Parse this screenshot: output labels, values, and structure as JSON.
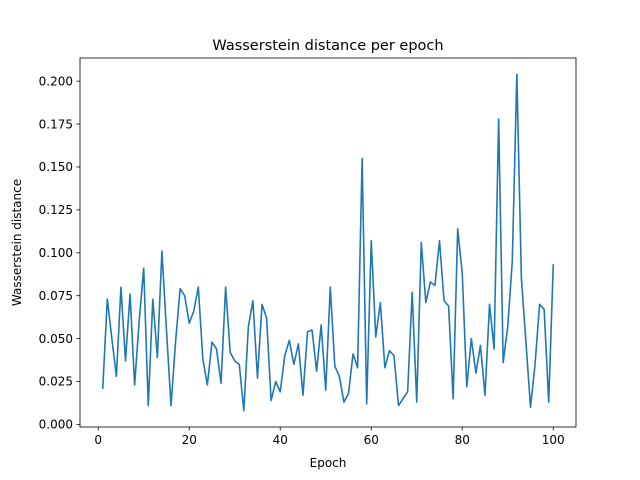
{
  "chart_data": {
    "type": "line",
    "title": "Wasserstein distance per epoch",
    "xlabel": "Epoch",
    "ylabel": "Wasserstein distance",
    "xlim": [
      -4,
      105
    ],
    "ylim": [
      -0.0015,
      0.2135
    ],
    "xticks": [
      0,
      20,
      40,
      60,
      80,
      100
    ],
    "yticks": [
      0.0,
      0.025,
      0.05,
      0.075,
      0.1,
      0.125,
      0.15,
      0.175,
      0.2
    ],
    "ytick_labels": [
      "0.000",
      "0.025",
      "0.050",
      "0.075",
      "0.100",
      "0.125",
      "0.150",
      "0.175",
      "0.200"
    ],
    "grid": false,
    "series": [
      {
        "color": "#1f77b4",
        "x": [
          1,
          2,
          3,
          4,
          5,
          6,
          7,
          8,
          9,
          10,
          11,
          12,
          13,
          14,
          15,
          16,
          17,
          18,
          19,
          20,
          21,
          22,
          23,
          24,
          25,
          26,
          27,
          28,
          29,
          30,
          31,
          32,
          33,
          34,
          35,
          36,
          37,
          38,
          39,
          40,
          41,
          42,
          43,
          44,
          45,
          46,
          47,
          48,
          49,
          50,
          51,
          52,
          53,
          54,
          55,
          56,
          57,
          58,
          59,
          60,
          61,
          62,
          63,
          64,
          65,
          66,
          67,
          68,
          69,
          70,
          71,
          72,
          73,
          74,
          75,
          76,
          77,
          78,
          79,
          80,
          81,
          82,
          83,
          84,
          85,
          86,
          87,
          88,
          89,
          90,
          91,
          92,
          93,
          94,
          95,
          96,
          97,
          98,
          99,
          100
        ],
        "values": [
          0.021,
          0.073,
          0.05,
          0.028,
          0.08,
          0.037,
          0.076,
          0.023,
          0.06,
          0.091,
          0.011,
          0.073,
          0.039,
          0.101,
          0.055,
          0.011,
          0.048,
          0.079,
          0.075,
          0.059,
          0.066,
          0.08,
          0.038,
          0.023,
          0.048,
          0.044,
          0.024,
          0.08,
          0.042,
          0.037,
          0.035,
          0.008,
          0.057,
          0.072,
          0.027,
          0.07,
          0.062,
          0.014,
          0.025,
          0.019,
          0.04,
          0.049,
          0.035,
          0.047,
          0.017,
          0.054,
          0.055,
          0.031,
          0.058,
          0.02,
          0.08,
          0.034,
          0.028,
          0.013,
          0.018,
          0.041,
          0.033,
          0.155,
          0.012,
          0.107,
          0.051,
          0.071,
          0.033,
          0.043,
          0.04,
          0.011,
          0.015,
          0.019,
          0.077,
          0.013,
          0.106,
          0.071,
          0.083,
          0.081,
          0.107,
          0.072,
          0.069,
          0.015,
          0.114,
          0.088,
          0.022,
          0.05,
          0.03,
          0.046,
          0.017,
          0.07,
          0.044,
          0.178,
          0.036,
          0.057,
          0.095,
          0.204,
          0.085,
          0.048,
          0.01,
          0.035,
          0.07,
          0.067,
          0.013,
          0.093
        ]
      }
    ]
  }
}
